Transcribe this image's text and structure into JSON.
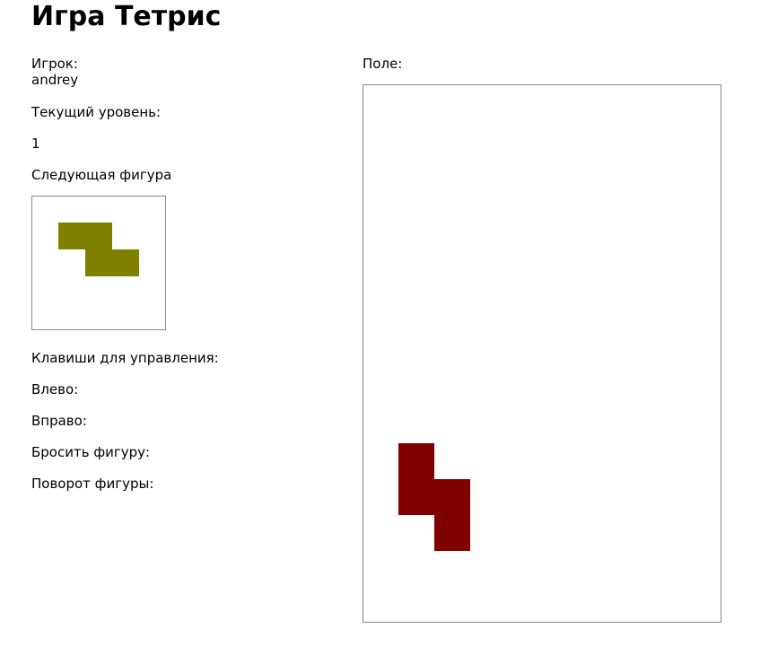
{
  "title": "Игра Тетрис",
  "player": {
    "label": "Игрок:",
    "name": "andrey"
  },
  "level": {
    "label": "Текущий уровень:",
    "value": "1"
  },
  "next_piece": {
    "label": "Следующая фигура",
    "shape": "Z",
    "color": "#808000"
  },
  "controls": {
    "label": "Клавиши для управления:",
    "left": "Влево:",
    "right": "Вправо:",
    "drop": "Бросить фигуру:",
    "rotate": "Поворот фигуры:"
  },
  "board": {
    "label": "Поле:",
    "columns": 10,
    "rows": 15,
    "active_piece": {
      "shape": "S-vertical",
      "color": "#800000",
      "cells": [
        [
          1,
          10
        ],
        [
          1,
          11
        ],
        [
          2,
          11
        ],
        [
          2,
          12
        ]
      ]
    }
  }
}
